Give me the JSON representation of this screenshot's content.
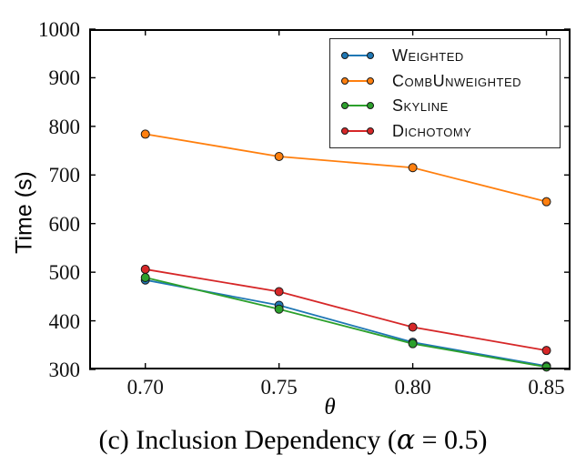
{
  "figure": {
    "ylabel": "Time (s)",
    "xlabel": "θ",
    "caption": {
      "prefix": "(c) Inclusion Dependency (",
      "alpha": "α",
      "suffix": " = 0.5)"
    }
  },
  "chart_data": {
    "type": "line",
    "title": "",
    "xlabel": "θ",
    "ylabel": "Time (s)",
    "x": [
      0.7,
      0.75,
      0.8,
      0.85
    ],
    "x_tick_labels": [
      "0.70",
      "0.75",
      "0.80",
      "0.85"
    ],
    "y_ticks": [
      300,
      400,
      500,
      600,
      700,
      800,
      900,
      1000
    ],
    "xlim": [
      0.679,
      0.859
    ],
    "ylim": [
      300,
      1000
    ],
    "grid": false,
    "legend_position": "upper right",
    "marker": "circle",
    "series": [
      {
        "name": "Weighted",
        "color": "#1f77b4",
        "values": [
          484,
          432,
          356,
          307
        ]
      },
      {
        "name": "CombUnweighted",
        "color": "#ff7f0e",
        "values": [
          784,
          738,
          715,
          645
        ]
      },
      {
        "name": "Skyline",
        "color": "#2ca02c",
        "values": [
          489,
          424,
          353,
          305
        ]
      },
      {
        "name": "Dichotomy",
        "color": "#d62728",
        "values": [
          506,
          460,
          387,
          339
        ]
      }
    ]
  }
}
